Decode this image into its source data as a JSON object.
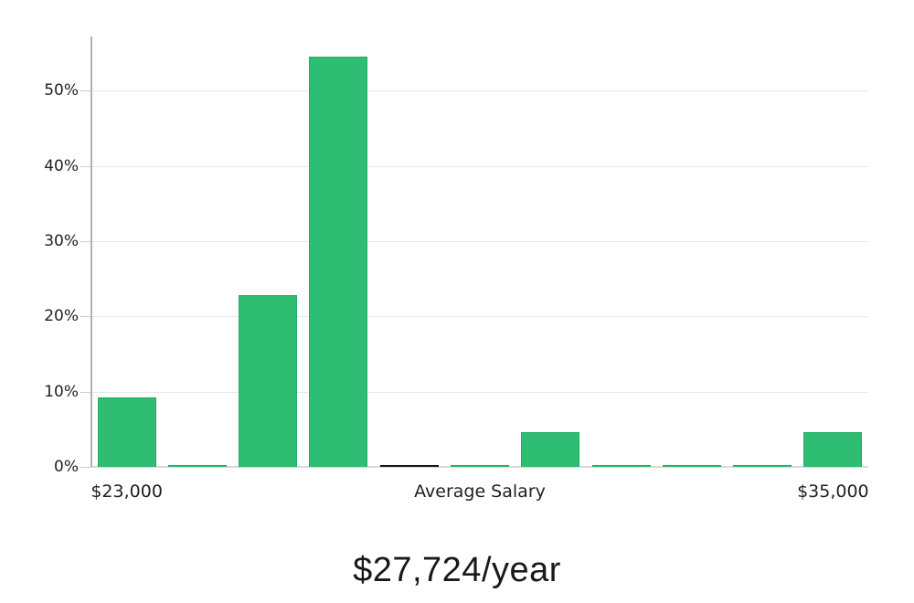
{
  "chart_data": {
    "type": "bar",
    "subtype": "histogram",
    "title": "$27,724/year",
    "values": [
      9.2,
      0.2,
      22.8,
      54.5,
      0.2,
      0.2,
      4.6,
      0.2,
      0.2,
      0.2,
      4.6
    ],
    "unit": "%",
    "highlight_index": 4,
    "y_tick_values": [
      0,
      10,
      20,
      30,
      40,
      50
    ],
    "y_tick_labels": [
      "0%",
      "10%",
      "20%",
      "30%",
      "40%",
      "50%"
    ],
    "ylim": [
      0,
      57
    ],
    "grid": "horizontal",
    "legend": "none",
    "x_tick_labels": [
      {
        "label": "$23,000",
        "slot": 0
      },
      {
        "label": "Average Salary",
        "slot": 5
      },
      {
        "label": "$35,000",
        "slot": 10
      }
    ],
    "colors": {
      "bar": "#2ebd72",
      "bar_border": "#29ab68",
      "highlight_bar": "#15151c",
      "gridline": "#e7e7e7",
      "baseline": "#d9d9d9",
      "tick": "#cccccc",
      "axis_line": "#b0b0b0",
      "label_text": "#1f1f1f",
      "title_text": "#191919",
      "background": "#ffffff"
    }
  }
}
